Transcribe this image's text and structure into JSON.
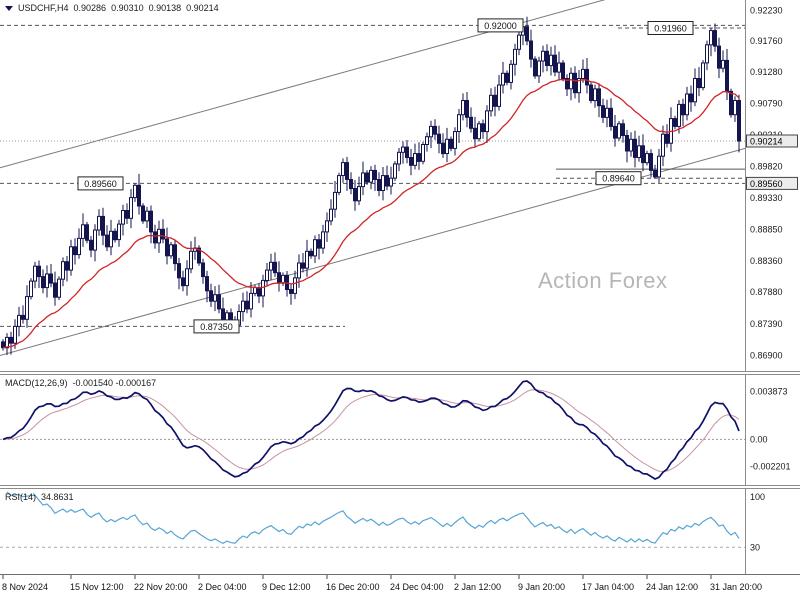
{
  "header": {
    "symbol_period": "USDCHF,H4",
    "open": "0.90286",
    "high": "0.90310",
    "low": "0.90138",
    "close": "0.90214"
  },
  "watermark": "Action Forex",
  "colors": {
    "candle": "#14144e",
    "bull_fill": "#ffffff",
    "ma": "#d22424",
    "macd_line": "#10106a",
    "macd_signal": "#c793a0",
    "rsi_line": "#57a5d5",
    "trend": "#7a7a7a",
    "level": "#555555",
    "axis_text": "#1b1b1b"
  },
  "chart_data": {
    "type": "candlestick",
    "symbol": "USDCHF",
    "timeframe": "H4",
    "title": "USDCHF,H4 0.90286 0.90310 0.90138 0.90214",
    "price_axis": {
      "min": 0.868,
      "max": 0.923,
      "ticks": [
        "0.92230",
        "0.91760",
        "0.91280",
        "0.90790",
        "0.90310",
        "0.89820",
        "0.89330",
        "0.88850",
        "0.88360",
        "0.87880",
        "0.87390",
        "0.86900"
      ],
      "boxed": [
        "0.90214",
        "0.89560"
      ]
    },
    "current_price": 0.90214,
    "x_ticks": [
      {
        "label": "8 Nov 2024",
        "i": 0
      },
      {
        "label": "15 Nov 12:00",
        "i": 17
      },
      {
        "label": "22 Nov 20:00",
        "i": 33
      },
      {
        "label": "2 Dec 04:00",
        "i": 49
      },
      {
        "label": "9 Dec 12:00",
        "i": 65
      },
      {
        "label": "16 Dec 20:00",
        "i": 81
      },
      {
        "label": "24 Dec 04:00",
        "i": 97
      },
      {
        "label": "2 Jan 12:00",
        "i": 113
      },
      {
        "label": "9 Jan 20:00",
        "i": 129
      },
      {
        "label": "17 Jan 04:00",
        "i": 145
      },
      {
        "label": "24 Jan 12:00",
        "i": 161
      },
      {
        "label": "31 Jan 20:00",
        "i": 177
      }
    ],
    "closes": [
      0.8702,
      0.8718,
      0.8709,
      0.8735,
      0.8752,
      0.8746,
      0.8781,
      0.8805,
      0.8828,
      0.8812,
      0.8795,
      0.8816,
      0.8802,
      0.878,
      0.8808,
      0.8835,
      0.8822,
      0.8858,
      0.8846,
      0.8871,
      0.8892,
      0.8868,
      0.8853,
      0.8884,
      0.8905,
      0.8876,
      0.8858,
      0.8882,
      0.8869,
      0.8893,
      0.8914,
      0.8902,
      0.8934,
      0.8953,
      0.8921,
      0.8898,
      0.8913,
      0.8881,
      0.8864,
      0.8885,
      0.887,
      0.8844,
      0.8861,
      0.8832,
      0.881,
      0.8798,
      0.8824,
      0.8851,
      0.8856,
      0.8833,
      0.8812,
      0.879,
      0.8774,
      0.8784,
      0.8762,
      0.8744,
      0.8756,
      0.8742,
      0.8737,
      0.8758,
      0.8774,
      0.8762,
      0.8786,
      0.8795,
      0.8782,
      0.8806,
      0.8822,
      0.8834,
      0.8818,
      0.8802,
      0.8814,
      0.8792,
      0.8786,
      0.881,
      0.8833,
      0.8825,
      0.8851,
      0.8844,
      0.8869,
      0.8856,
      0.8881,
      0.8898,
      0.8916,
      0.8942,
      0.8968,
      0.8988,
      0.8962,
      0.8948,
      0.8929,
      0.8951,
      0.8972,
      0.8958,
      0.8976,
      0.8962,
      0.8945,
      0.8968,
      0.8952,
      0.8964,
      0.8986,
      0.9004,
      0.9012,
      0.8996,
      0.8984,
      0.9002,
      0.899,
      0.9016,
      0.9028,
      0.9044,
      0.9032,
      0.9018,
      0.9002,
      0.9024,
      0.901,
      0.9036,
      0.9062,
      0.9084,
      0.9058,
      0.9041,
      0.9025,
      0.9048,
      0.9036,
      0.9068,
      0.9092,
      0.9075,
      0.9108,
      0.9126,
      0.9112,
      0.914,
      0.9163,
      0.9185,
      0.9198,
      0.9176,
      0.9148,
      0.9122,
      0.9145,
      0.916,
      0.9138,
      0.9154,
      0.9128,
      0.9142,
      0.9118,
      0.9102,
      0.9126,
      0.9096,
      0.9118,
      0.9132,
      0.9108,
      0.9084,
      0.9102,
      0.9076,
      0.9058,
      0.9072,
      0.9044,
      0.9026,
      0.9048,
      0.903,
      0.9006,
      0.9024,
      0.8996,
      0.9014,
      0.8988,
      0.9002,
      0.8976,
      0.8966,
      0.8998,
      0.9032,
      0.9018,
      0.9056,
      0.9044,
      0.9078,
      0.9062,
      0.9094,
      0.9082,
      0.9118,
      0.9104,
      0.9142,
      0.917,
      0.9192,
      0.9168,
      0.9134,
      0.9146,
      0.9098,
      0.9062,
      0.9084,
      0.90214
    ],
    "extremes": {
      "33": {
        "h": 0.8956
      },
      "58": {
        "l": 0.8735
      },
      "130": {
        "h": 0.92
      },
      "163": {
        "l": 0.8964
      },
      "177": {
        "h": 0.9196
      }
    },
    "ma_period": 24,
    "levels": [
      {
        "label": "0.92000",
        "value": 0.92,
        "x1": 0,
        "x2": 745,
        "dash": true,
        "box_x": 478
      },
      {
        "label": "0.91960",
        "value": 0.9196,
        "x1": 618,
        "x2": 745,
        "dash": true,
        "box_x": 648
      },
      {
        "label": "0.89560",
        "value": 0.8956,
        "x1": 0,
        "x2": 745,
        "dash": true,
        "box_x": 78
      },
      {
        "label": "0.89640",
        "value": 0.8964,
        "x1": 556,
        "x2": 745,
        "dash": true,
        "box_x": 596
      },
      {
        "value": 0.8978,
        "x1": 556,
        "x2": 745,
        "dash": false
      },
      {
        "label": "0.87350",
        "value": 0.8735,
        "x1": 0,
        "x2": 345,
        "dash": true,
        "box_x": 194
      }
    ],
    "trend_lines": [
      {
        "x1": 0,
        "p1": 0.869,
        "x2": 745,
        "p2": 0.901
      },
      {
        "x1": 0,
        "p1": 0.898,
        "x2": 745,
        "p2": 0.93
      }
    ],
    "macd": {
      "label": "MACD(12,26,9)",
      "value_text": "-0.001540 -0.000167",
      "fast": 12,
      "slow": 26,
      "signal_period": 9,
      "ticks": [
        {
          "v": 0.003873,
          "label": "0.003873"
        },
        {
          "v": 0,
          "label": "0.00"
        },
        {
          "v": -0.002201,
          "label": "-0.002201"
        }
      ]
    },
    "rsi": {
      "label": "RSI(14)",
      "value_text": "34.8631",
      "period": 14,
      "ticks": [
        {
          "v": 100,
          "label": "100"
        },
        {
          "v": 30,
          "label": "30"
        }
      ],
      "levels": [
        30
      ]
    }
  }
}
